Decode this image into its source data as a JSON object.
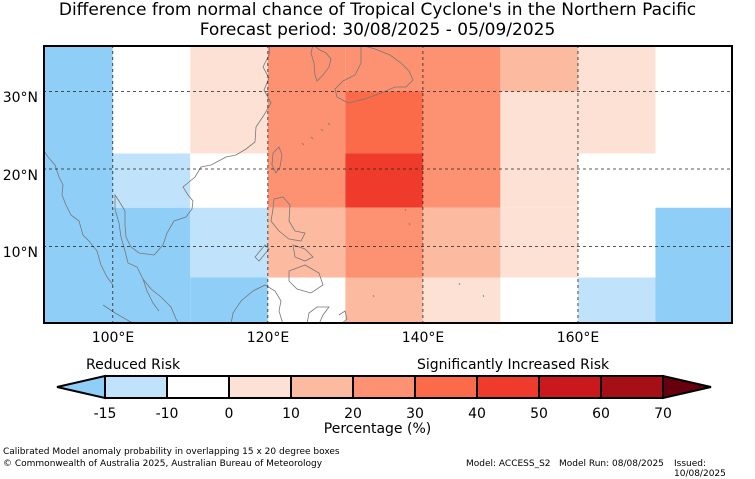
{
  "title": {
    "line1": "Difference from normal chance of Tropical Cyclone's in the Northern Pacific",
    "line2": "Forecast period: 30/08/2025 - 05/09/2025"
  },
  "map": {
    "lat_labels": [
      "30°N",
      "20°N",
      "10°N"
    ],
    "lon_labels": [
      "100°E",
      "120°E",
      "140°E",
      "160°E"
    ],
    "lon_range": [
      91,
      180
    ],
    "lat_range": [
      0,
      36
    ]
  },
  "colorbar": {
    "left_label": "Reduced Risk",
    "right_label": "Significantly Increased Risk",
    "title": "Percentage (%)",
    "ticks": [
      "-15",
      "-10",
      "0",
      "10",
      "20",
      "30",
      "40",
      "50",
      "60",
      "70"
    ],
    "colors": [
      "#8fcef7",
      "#c0e3fb",
      "#ffffff",
      "#fee1d5",
      "#fcbba0",
      "#fc9272",
      "#fb6b4a",
      "#ef3b2c",
      "#cb181d",
      "#a50f15",
      "#67000d"
    ]
  },
  "anomaly_grid": {
    "cells": [
      {
        "lon": [
          91,
          100
        ],
        "lat": [
          0,
          36
        ],
        "level": "-15"
      },
      {
        "lon": [
          100,
          110
        ],
        "lat": [
          30,
          36
        ],
        "level": "0"
      },
      {
        "lon": [
          100,
          110
        ],
        "lat": [
          22,
          30
        ],
        "level": "0"
      },
      {
        "lon": [
          100,
          110
        ],
        "lat": [
          15,
          22
        ],
        "level": "-10"
      },
      {
        "lon": [
          100,
          110
        ],
        "lat": [
          0,
          15
        ],
        "level": "-15"
      },
      {
        "lon": [
          110,
          120
        ],
        "lat": [
          22,
          36
        ],
        "level": "10"
      },
      {
        "lon": [
          110,
          120
        ],
        "lat": [
          15,
          22
        ],
        "level": "0"
      },
      {
        "lon": [
          110,
          120
        ],
        "lat": [
          6,
          15
        ],
        "level": "-10"
      },
      {
        "lon": [
          110,
          120
        ],
        "lat": [
          0,
          6
        ],
        "level": "-15"
      },
      {
        "lon": [
          120,
          130
        ],
        "lat": [
          15,
          36
        ],
        "level": "30"
      },
      {
        "lon": [
          120,
          130
        ],
        "lat": [
          6,
          15
        ],
        "level": "20"
      },
      {
        "lon": [
          120,
          130
        ],
        "lat": [
          0,
          6
        ],
        "level": "0"
      },
      {
        "lon": [
          130,
          140
        ],
        "lat": [
          30,
          36
        ],
        "level": "30"
      },
      {
        "lon": [
          130,
          140
        ],
        "lat": [
          22,
          30
        ],
        "level": "40"
      },
      {
        "lon": [
          130,
          140
        ],
        "lat": [
          15,
          22
        ],
        "level": "50"
      },
      {
        "lon": [
          130,
          140
        ],
        "lat": [
          6,
          15
        ],
        "level": "30"
      },
      {
        "lon": [
          130,
          140
        ],
        "lat": [
          0,
          6
        ],
        "level": "20"
      },
      {
        "lon": [
          140,
          150
        ],
        "lat": [
          15,
          36
        ],
        "level": "30"
      },
      {
        "lon": [
          140,
          150
        ],
        "lat": [
          6,
          15
        ],
        "level": "20"
      },
      {
        "lon": [
          140,
          150
        ],
        "lat": [
          0,
          6
        ],
        "level": "10"
      },
      {
        "lon": [
          150,
          160
        ],
        "lat": [
          30,
          36
        ],
        "level": "20"
      },
      {
        "lon": [
          150,
          160
        ],
        "lat": [
          15,
          30
        ],
        "level": "10"
      },
      {
        "lon": [
          150,
          160
        ],
        "lat": [
          6,
          15
        ],
        "level": "10"
      },
      {
        "lon": [
          150,
          160
        ],
        "lat": [
          0,
          6
        ],
        "level": "0"
      },
      {
        "lon": [
          160,
          170
        ],
        "lat": [
          22,
          36
        ],
        "level": "10"
      },
      {
        "lon": [
          160,
          170
        ],
        "lat": [
          6,
          22
        ],
        "level": "0"
      },
      {
        "lon": [
          160,
          170
        ],
        "lat": [
          0,
          6
        ],
        "level": "-10"
      },
      {
        "lon": [
          170,
          180
        ],
        "lat": [
          15,
          36
        ],
        "level": "0"
      },
      {
        "lon": [
          170,
          180
        ],
        "lat": [
          0,
          15
        ],
        "level": "-15"
      }
    ]
  },
  "footer": {
    "description": "Calibrated Model anomaly probability in overlapping 15 x 20 degree boxes",
    "copyright": "© Commonwealth of Australia 2025, Australian Bureau of Meteorology",
    "model": "Model: ACCESS_S2",
    "model_run": "Model Run: 08/08/2025",
    "issued": "Issued: 10/08/2025"
  }
}
